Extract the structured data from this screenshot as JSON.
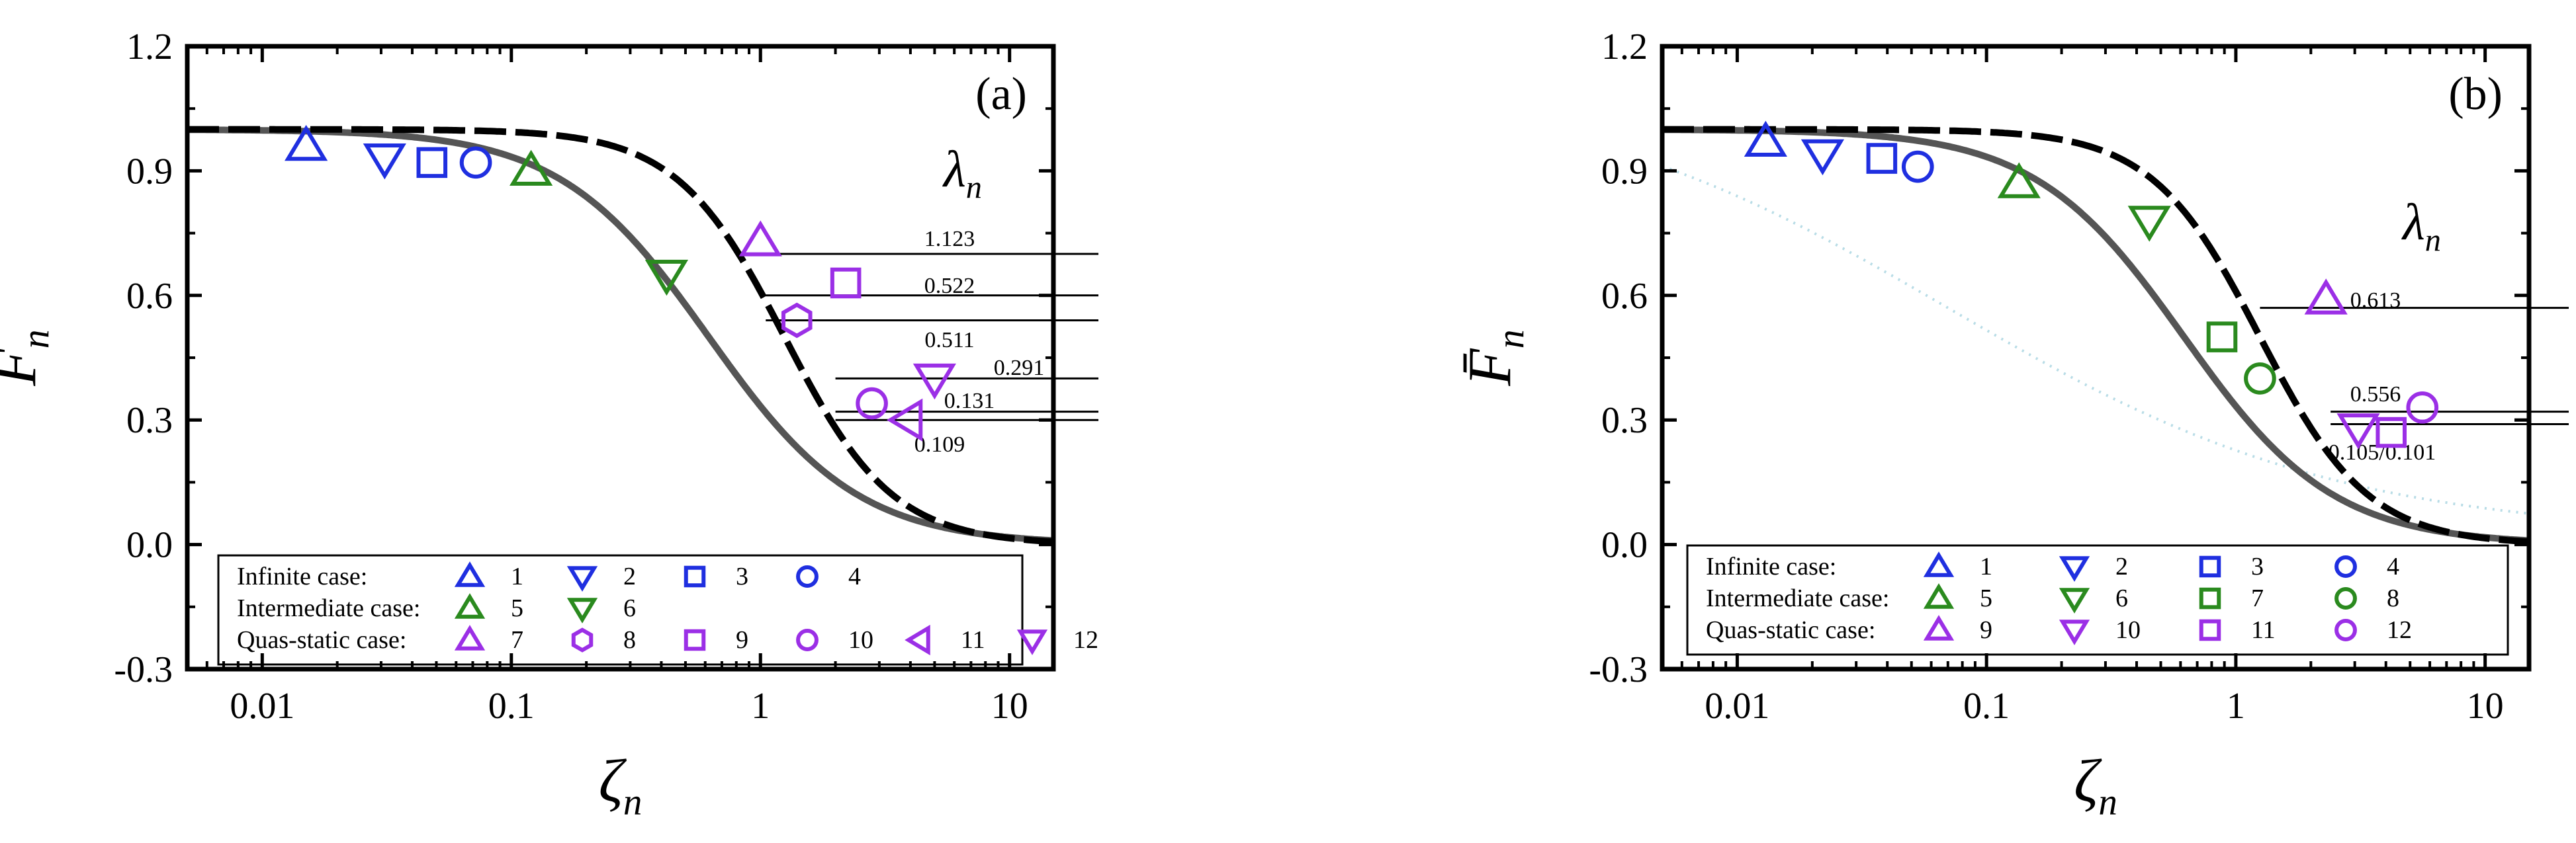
{
  "colors": {
    "blue": "#1f2fe0",
    "green": "#2a8a1e",
    "purple": "#9b2fe6",
    "curve": "#000000",
    "gray_curve": "#555555",
    "faint_curve": "#b8dce6"
  },
  "chart_data": [
    {
      "type": "scatter",
      "panel_label": "(a)",
      "title": "",
      "xlabel": "ζn",
      "ylabel": "F̄n",
      "xscale": "log",
      "xlim": [
        0.005,
        15
      ],
      "ylim": [
        -0.3,
        1.2
      ],
      "xticks": [
        0.01,
        0.1,
        1,
        10
      ],
      "xtick_labels": [
        "0.01",
        "0.1",
        "1",
        "10"
      ],
      "yticks": [
        -0.3,
        0,
        0.3,
        0.6,
        0.9,
        1.2
      ],
      "ytick_labels": [
        "-0.3",
        "0.0",
        "0.3",
        "0.6",
        "0.9",
        "1.2"
      ],
      "grid": false,
      "lambda_label": "λn",
      "lambda_lines": [
        {
          "label": "1.123",
          "y": 0.7
        },
        {
          "label": "0.522",
          "y": 0.6
        },
        {
          "label": "0.511",
          "y": 0.54
        },
        {
          "label": "0.291",
          "y": 0.4
        },
        {
          "label": "0.131",
          "y": 0.32
        },
        {
          "label": "0.109",
          "y": 0.3
        }
      ],
      "series": [
        {
          "name": "1",
          "group": "Infinite case:",
          "marker": "triangle-up",
          "color": "#1f2fe0",
          "x": [
            0.015
          ],
          "y": [
            0.96
          ]
        },
        {
          "name": "2",
          "group": "Infinite case:",
          "marker": "triangle-down",
          "color": "#1f2fe0",
          "x": [
            0.031
          ],
          "y": [
            0.93
          ]
        },
        {
          "name": "3",
          "group": "Infinite case:",
          "marker": "square",
          "color": "#1f2fe0",
          "x": [
            0.048
          ],
          "y": [
            0.92
          ]
        },
        {
          "name": "4",
          "group": "Infinite case:",
          "marker": "circle",
          "color": "#1f2fe0",
          "x": [
            0.072
          ],
          "y": [
            0.92
          ]
        },
        {
          "name": "5",
          "group": "Intermediate case:",
          "marker": "triangle-up",
          "color": "#2a8a1e",
          "x": [
            0.12
          ],
          "y": [
            0.9
          ]
        },
        {
          "name": "6",
          "group": "Intermediate case:",
          "marker": "triangle-down",
          "color": "#2a8a1e",
          "x": [
            0.42
          ],
          "y": [
            0.65
          ]
        },
        {
          "name": "7",
          "group": "Quas-static case:",
          "marker": "triangle-up",
          "color": "#9b2fe6",
          "x": [
            1.0
          ],
          "y": [
            0.73
          ]
        },
        {
          "name": "8",
          "group": "Quas-static case:",
          "marker": "hexagon",
          "color": "#9b2fe6",
          "x": [
            1.4
          ],
          "y": [
            0.54
          ]
        },
        {
          "name": "9",
          "group": "Quas-static case:",
          "marker": "square",
          "color": "#9b2fe6",
          "x": [
            2.2
          ],
          "y": [
            0.63
          ]
        },
        {
          "name": "10",
          "group": "Quas-static case:",
          "marker": "circle",
          "color": "#9b2fe6",
          "x": [
            2.8
          ],
          "y": [
            0.34
          ]
        },
        {
          "name": "11",
          "group": "Quas-static case:",
          "marker": "triangle-left",
          "color": "#9b2fe6",
          "x": [
            3.9
          ],
          "y": [
            0.3
          ]
        },
        {
          "name": "12",
          "group": "Quas-static case:",
          "marker": "triangle-down",
          "color": "#9b2fe6",
          "x": [
            5.0
          ],
          "y": [
            0.4
          ]
        }
      ],
      "legend_position": "bottom-left",
      "legend_rows": [
        {
          "label": "Infinite case:",
          "items": [
            "1",
            "2",
            "3",
            "4"
          ]
        },
        {
          "label": "Intermediate case:",
          "items": [
            "5",
            "6"
          ]
        },
        {
          "label": "Quas-static case:",
          "items": [
            "7",
            "8",
            "9",
            "10",
            "11",
            "12"
          ]
        }
      ]
    },
    {
      "type": "scatter",
      "panel_label": "(b)",
      "title": "",
      "xlabel": "ζn",
      "ylabel": "F̄n",
      "xscale": "log",
      "xlim": [
        0.005,
        15
      ],
      "ylim": [
        -0.3,
        1.2
      ],
      "xticks": [
        0.01,
        0.1,
        1,
        10
      ],
      "xtick_labels": [
        "0.01",
        "0.1",
        "1",
        "10"
      ],
      "yticks": [
        -0.3,
        0,
        0.3,
        0.6,
        0.9,
        1.2
      ],
      "ytick_labels": [
        "-0.3",
        "0.0",
        "0.3",
        "0.6",
        "0.9",
        "1.2"
      ],
      "grid": false,
      "lambda_label": "λn",
      "lambda_lines": [
        {
          "label": "0.613",
          "y": 0.57
        },
        {
          "label": "0.556",
          "y": 0.32
        },
        {
          "label": "0.105/0.101",
          "y": 0.29
        }
      ],
      "series": [
        {
          "name": "1",
          "group": "Infinite case:",
          "marker": "triangle-up",
          "color": "#1f2fe0",
          "x": [
            0.013
          ],
          "y": [
            0.97
          ]
        },
        {
          "name": "2",
          "group": "Infinite case:",
          "marker": "triangle-down",
          "color": "#1f2fe0",
          "x": [
            0.022
          ],
          "y": [
            0.94
          ]
        },
        {
          "name": "3",
          "group": "Infinite case:",
          "marker": "square",
          "color": "#1f2fe0",
          "x": [
            0.038
          ],
          "y": [
            0.93
          ]
        },
        {
          "name": "4",
          "group": "Infinite case:",
          "marker": "circle",
          "color": "#1f2fe0",
          "x": [
            0.053
          ],
          "y": [
            0.91
          ]
        },
        {
          "name": "5",
          "group": "Intermediate case:",
          "marker": "triangle-up",
          "color": "#2a8a1e",
          "x": [
            0.135
          ],
          "y": [
            0.87
          ]
        },
        {
          "name": "6",
          "group": "Intermediate case:",
          "marker": "triangle-down",
          "color": "#2a8a1e",
          "x": [
            0.45
          ],
          "y": [
            0.78
          ]
        },
        {
          "name": "7",
          "group": "Intermediate case:",
          "marker": "square",
          "color": "#2a8a1e",
          "x": [
            0.88
          ],
          "y": [
            0.5
          ]
        },
        {
          "name": "8",
          "group": "Intermediate case:",
          "marker": "circle",
          "color": "#2a8a1e",
          "x": [
            1.25
          ],
          "y": [
            0.4
          ]
        },
        {
          "name": "9",
          "group": "Quas-static case:",
          "marker": "triangle-up",
          "color": "#9b2fe6",
          "x": [
            2.3
          ],
          "y": [
            0.59
          ]
        },
        {
          "name": "10",
          "group": "Quas-static case:",
          "marker": "triangle-down",
          "color": "#9b2fe6",
          "x": [
            3.1
          ],
          "y": [
            0.28
          ]
        },
        {
          "name": "11",
          "group": "Quas-static case:",
          "marker": "square",
          "color": "#9b2fe6",
          "x": [
            4.2
          ],
          "y": [
            0.27
          ]
        },
        {
          "name": "12",
          "group": "Quas-static case:",
          "marker": "circle",
          "color": "#9b2fe6",
          "x": [
            5.6
          ],
          "y": [
            0.33
          ]
        }
      ],
      "legend_position": "bottom-left",
      "legend_rows": [
        {
          "label": "Infinite case:",
          "items": [
            "1",
            "2",
            "3",
            "4"
          ]
        },
        {
          "label": "Intermediate case:",
          "items": [
            "5",
            "6",
            "7",
            "8"
          ]
        },
        {
          "label": "Quas-static case:",
          "items": [
            "9",
            "10",
            "11",
            "12"
          ]
        }
      ]
    }
  ]
}
